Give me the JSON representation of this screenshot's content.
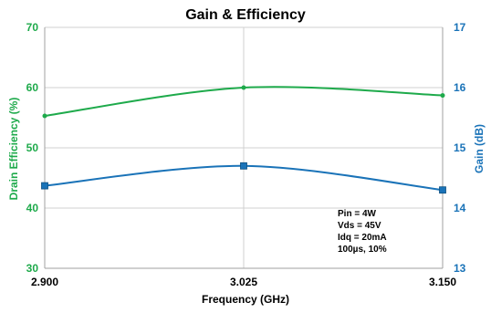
{
  "chart_data": {
    "type": "line",
    "title": "Gain & Efficiency",
    "xlabel": "Frequency (GHz)",
    "ylabel_left": "Drain Efficiency (%)",
    "ylabel_right": "Gain (dB)",
    "x": [
      2.9,
      3.025,
      3.15
    ],
    "x_tick_labels": [
      "2.900",
      "3.025",
      "3.150"
    ],
    "xlim": [
      2.9,
      3.15
    ],
    "ylim_left": [
      30,
      70
    ],
    "ylim_right": [
      13,
      17
    ],
    "y_ticks_left": [
      30,
      40,
      50,
      60,
      70
    ],
    "y_ticks_right": [
      13,
      14,
      15,
      16,
      17
    ],
    "grid": true,
    "series": [
      {
        "axis": "left",
        "color": "#1eaa4b",
        "marker": "circle",
        "values": [
          55.3,
          60.0,
          58.7
        ]
      },
      {
        "axis": "right",
        "color": "#1a73b8",
        "marker": "square",
        "values": [
          14.37,
          14.7,
          14.3
        ]
      }
    ],
    "annotations": [
      "Pin = 4W",
      "Vds = 45V",
      "Idq = 20mA",
      "100µs, 10%"
    ]
  }
}
